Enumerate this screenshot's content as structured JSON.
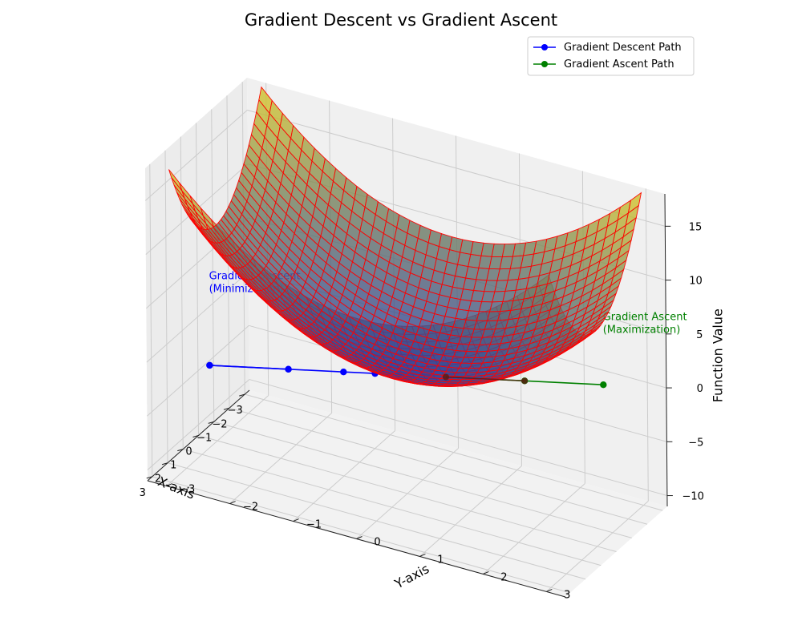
{
  "chart_data": {
    "type": "surface3d",
    "title": "Gradient Descent vs Gradient Ascent",
    "xlabel": "X-axis",
    "ylabel": "Y-axis",
    "zlabel": "Function Value",
    "xlim": [
      -3.3,
      3.3
    ],
    "ylim": [
      -3.3,
      3.3
    ],
    "zlim": [
      -11,
      18
    ],
    "x_ticks": [
      -3,
      -2,
      -1,
      0,
      1,
      2,
      3
    ],
    "y_ticks": [
      -3,
      -2,
      -1,
      0,
      1,
      2,
      3
    ],
    "z_ticks": [
      -10,
      -5,
      0,
      5,
      10,
      15
    ],
    "x_tick_labels": [
      "−3",
      "−2",
      "−1",
      "0",
      "1",
      "2",
      "3"
    ],
    "y_tick_labels": [
      "−3",
      "−2",
      "−1",
      "0",
      "1",
      "2",
      "3"
    ],
    "z_tick_labels": [
      "−10",
      "−5",
      "0",
      "5",
      "10",
      "15"
    ],
    "surface": {
      "function": "x^2 + y^2",
      "x_range": [
        -3,
        3
      ],
      "y_range": [
        -3,
        3
      ],
      "colors": {
        "low": "#2c3f9e",
        "mid": "#6f7d66",
        "high": "#d9c82a",
        "wire": "#ff0000"
      }
    },
    "series": [
      {
        "name": "Gradient Descent Path",
        "color": "#0000ff",
        "points": [
          [
            2.5,
            -2.5,
            0
          ],
          [
            1.5,
            -1.5,
            0
          ],
          [
            0.8,
            -0.8,
            0
          ],
          [
            0.4,
            -0.4,
            0
          ],
          [
            0.1,
            -0.1,
            0
          ]
        ]
      },
      {
        "name": "Gradient Ascent Path",
        "color": "#008000",
        "points": [
          [
            -0.5,
            0.5,
            0
          ],
          [
            -1.5,
            1.5,
            0
          ],
          [
            -2.5,
            2.5,
            0
          ]
        ]
      }
    ],
    "annotations": [
      {
        "lines": [
          "Gradient Descent",
          "(Minimization)"
        ],
        "color": "#0000ff",
        "anchor": [
          2.5,
          -2.5,
          8
        ]
      },
      {
        "lines": [
          "Gradient Ascent",
          "(Maximization)"
        ],
        "color": "#008000",
        "anchor": [
          -2.5,
          2.5,
          6
        ]
      }
    ],
    "grid": true,
    "legend_position": "top-right",
    "view": {
      "elev": 30,
      "azim": -60
    }
  }
}
